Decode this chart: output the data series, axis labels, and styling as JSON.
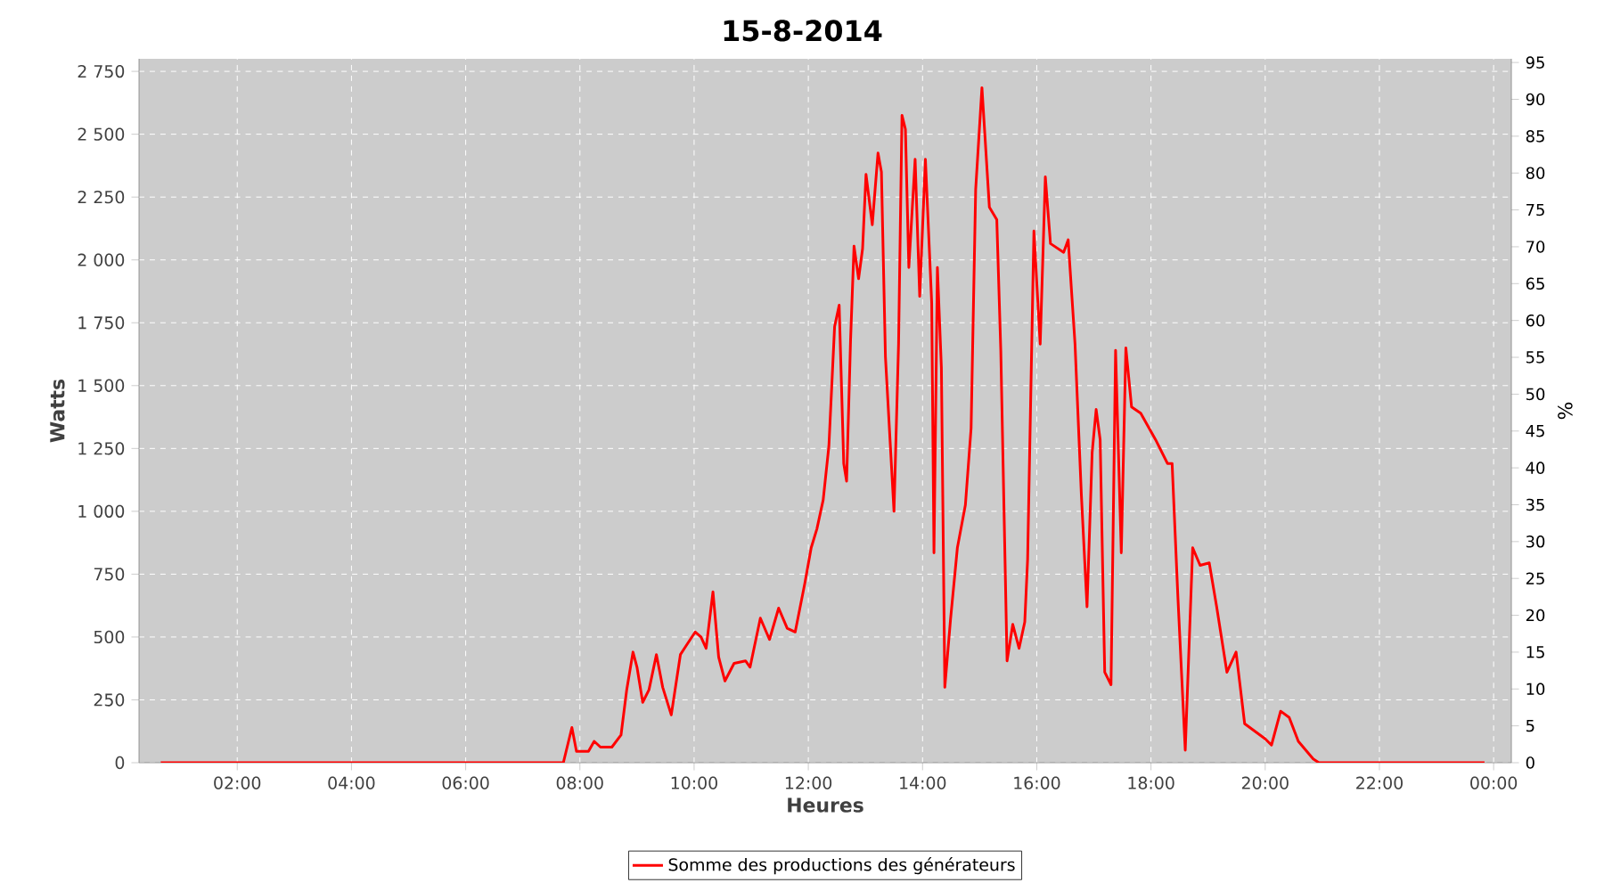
{
  "chart_data": {
    "type": "line",
    "title": "15-8-2014",
    "xlabel": "Heures",
    "ylabel": "Watts",
    "y2label": "%",
    "series": [
      {
        "name": "Somme des productions des  générateurs",
        "color": "#ff0000",
        "x": [
          0.66,
          7.71,
          7.86,
          7.94,
          8.15,
          8.25,
          8.36,
          8.56,
          8.72,
          8.82,
          8.93,
          9.0,
          9.1,
          9.21,
          9.34,
          9.45,
          9.6,
          9.76,
          9.86,
          10.02,
          10.12,
          10.21,
          10.33,
          10.43,
          10.54,
          10.7,
          10.9,
          10.98,
          11.16,
          11.32,
          11.48,
          11.63,
          11.77,
          11.94,
          12.05,
          12.15,
          12.26,
          12.36,
          12.46,
          12.54,
          12.62,
          12.67,
          12.74,
          12.8,
          12.88,
          12.95,
          13.01,
          13.12,
          13.22,
          13.28,
          13.35,
          13.5,
          13.58,
          13.64,
          13.7,
          13.76,
          13.87,
          13.95,
          14.05,
          14.16,
          14.2,
          14.26,
          14.33,
          14.39,
          14.49,
          14.61,
          14.75,
          14.85,
          14.93,
          15.04,
          15.17,
          15.3,
          15.37,
          15.48,
          15.58,
          15.69,
          15.79,
          15.84,
          15.95,
          16.06,
          16.15,
          16.24,
          16.47,
          16.55,
          16.67,
          16.78,
          16.88,
          16.97,
          17.04,
          17.11,
          17.19,
          17.3,
          17.38,
          17.48,
          17.56,
          17.66,
          17.82,
          18.08,
          18.29,
          18.37,
          18.47,
          18.6,
          18.73,
          18.86,
          19.02,
          19.15,
          19.33,
          19.49,
          19.64,
          20.0,
          20.11,
          20.27,
          20.42,
          20.58,
          20.84,
          20.94,
          23.84
        ],
        "values": [
          0,
          0,
          140,
          45,
          45,
          85,
          62,
          62,
          110,
          290,
          440,
          380,
          240,
          290,
          430,
          300,
          190,
          430,
          465,
          520,
          500,
          455,
          680,
          420,
          325,
          395,
          405,
          380,
          575,
          490,
          615,
          535,
          520,
          715,
          855,
          930,
          1045,
          1260,
          1735,
          1820,
          1190,
          1120,
          1685,
          2055,
          1925,
          2045,
          2340,
          2140,
          2425,
          2350,
          1615,
          1000,
          1665,
          2575,
          2520,
          1970,
          2400,
          1855,
          2400,
          1830,
          835,
          1970,
          1570,
          300,
          570,
          855,
          1025,
          1330,
          2280,
          2685,
          2210,
          2160,
          1640,
          405,
          550,
          455,
          560,
          810,
          2115,
          1665,
          2330,
          2065,
          2030,
          2080,
          1665,
          1070,
          620,
          1235,
          1405,
          1285,
          360,
          310,
          1640,
          835,
          1650,
          1415,
          1390,
          1285,
          1190,
          1190,
          665,
          50,
          855,
          785,
          795,
          620,
          360,
          440,
          155,
          95,
          70,
          205,
          180,
          85,
          15,
          0,
          0
        ]
      }
    ],
    "xlim": [
      0.28,
      24.31
    ],
    "xticks": [
      {
        "value": 2,
        "label": "02:00"
      },
      {
        "value": 4,
        "label": "04:00"
      },
      {
        "value": 6,
        "label": "06:00"
      },
      {
        "value": 8,
        "label": "08:00"
      },
      {
        "value": 10,
        "label": "10:00"
      },
      {
        "value": 12,
        "label": "12:00"
      },
      {
        "value": 14,
        "label": "14:00"
      },
      {
        "value": 16,
        "label": "16:00"
      },
      {
        "value": 18,
        "label": "18:00"
      },
      {
        "value": 20,
        "label": "20:00"
      },
      {
        "value": 22,
        "label": "22:00"
      },
      {
        "value": 24,
        "label": "00:00"
      }
    ],
    "ylim": [
      0,
      2800
    ],
    "yticks": [
      0,
      250,
      500,
      750,
      {
        "value": 1000,
        "label": "1 000"
      },
      {
        "value": 1250,
        "label": "1 250"
      },
      {
        "value": 1500,
        "label": "1 500"
      },
      {
        "value": 1750,
        "label": "1 750"
      },
      {
        "value": 2000,
        "label": "2 000"
      },
      {
        "value": 2250,
        "label": "2 250"
      },
      {
        "value": 2500,
        "label": "2 500"
      },
      {
        "value": 2750,
        "label": "2 750"
      }
    ],
    "y2lim": [
      0,
      95.5
    ],
    "y2ticks": [
      0,
      5,
      10,
      15,
      20,
      25,
      30,
      35,
      40,
      45,
      50,
      55,
      60,
      65,
      70,
      75,
      80,
      85,
      90,
      95
    ],
    "grid": true,
    "legend": "bottom",
    "marker": "none",
    "line_style": "solid"
  }
}
